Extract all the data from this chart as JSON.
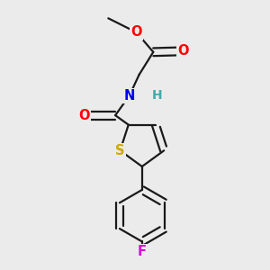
{
  "bg_color": "#ebebeb",
  "bond_color": "#1a1a1a",
  "bond_width": 1.6,
  "atom_colors": {
    "O": "#ff0000",
    "N": "#0000ee",
    "S": "#ccaa00",
    "F": "#dd00dd",
    "H": "#44aaaa",
    "C": "#1a1a1a"
  },
  "font_size": 10.5
}
